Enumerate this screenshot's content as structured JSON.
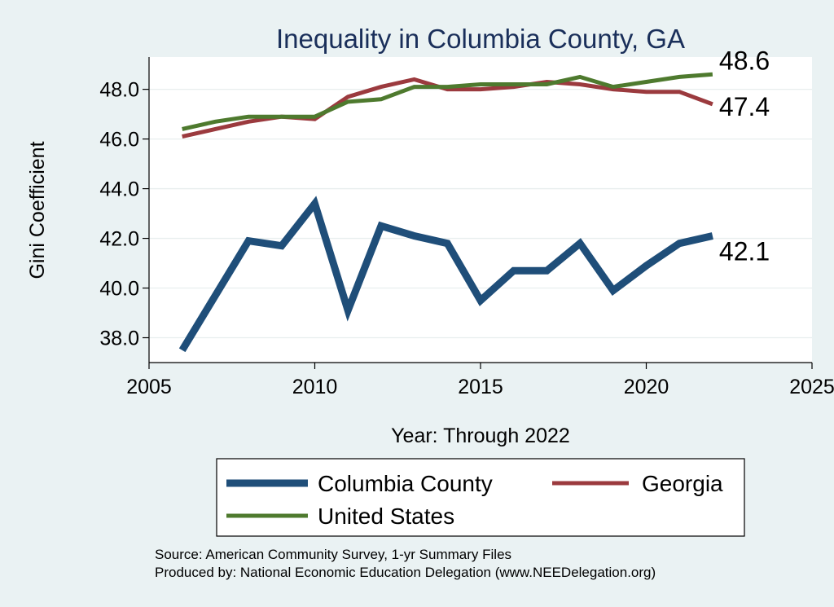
{
  "chart_data": {
    "type": "line",
    "title": "Inequality in Columbia County, GA",
    "xlabel": "Year: Through 2022",
    "ylabel": "Gini Coefficient",
    "xlim": [
      2005,
      2025
    ],
    "ylim": [
      37.0,
      49.3
    ],
    "xticks": [
      2005,
      2010,
      2015,
      2020,
      2025
    ],
    "yticks": [
      38.0,
      40.0,
      42.0,
      44.0,
      46.0,
      48.0
    ],
    "ytick_labels": [
      "38.0",
      "40.0",
      "42.0",
      "44.0",
      "46.0",
      "48.0"
    ],
    "grid": true,
    "series": [
      {
        "name": "Columbia County",
        "color": "#1f4e79",
        "x": [
          2006,
          2007,
          2008,
          2009,
          2010,
          2011,
          2012,
          2013,
          2014,
          2015,
          2016,
          2017,
          2018,
          2019,
          2020,
          2021,
          2022
        ],
        "values": [
          37.5,
          39.7,
          41.9,
          41.7,
          43.4,
          39.1,
          42.5,
          42.1,
          41.8,
          39.5,
          40.7,
          40.7,
          41.8,
          39.9,
          40.9,
          41.8,
          42.1
        ],
        "end_label": "42.1"
      },
      {
        "name": "Georgia",
        "color": "#9b3a3e",
        "x": [
          2006,
          2007,
          2008,
          2009,
          2010,
          2011,
          2012,
          2013,
          2014,
          2015,
          2016,
          2017,
          2018,
          2019,
          2020,
          2021,
          2022
        ],
        "values": [
          46.1,
          46.4,
          46.7,
          46.9,
          46.8,
          47.7,
          48.1,
          48.4,
          48.0,
          48.0,
          48.1,
          48.3,
          48.2,
          48.0,
          47.9,
          47.9,
          47.4
        ],
        "end_label": "47.4"
      },
      {
        "name": "United States",
        "color": "#4e7a2e",
        "x": [
          2006,
          2007,
          2008,
          2009,
          2010,
          2011,
          2012,
          2013,
          2014,
          2015,
          2016,
          2017,
          2018,
          2019,
          2020,
          2021,
          2022
        ],
        "values": [
          46.4,
          46.7,
          46.9,
          46.9,
          46.9,
          47.5,
          47.6,
          48.1,
          48.1,
          48.2,
          48.2,
          48.2,
          48.5,
          48.1,
          48.3,
          48.5,
          48.6
        ],
        "end_label": "48.6"
      }
    ],
    "legend": {
      "placement": "bottom",
      "entries": [
        "Columbia County",
        "Georgia",
        "United States"
      ]
    }
  },
  "source": {
    "line1": "Source: American Community Survey, 1-yr Summary Files",
    "line2": "Produced by: National Economic Education Delegation (www.NEEDelegation.org)"
  }
}
